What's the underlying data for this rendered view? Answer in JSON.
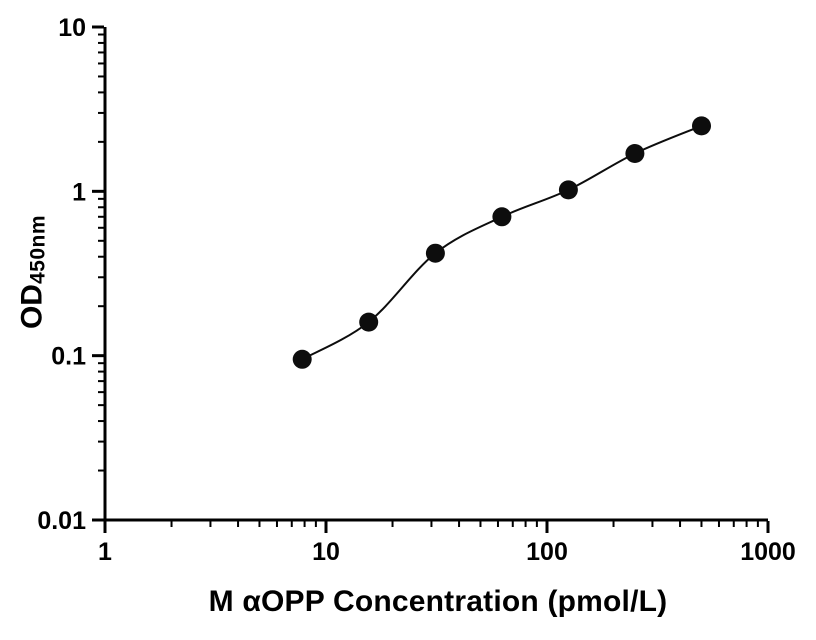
{
  "chart_data": {
    "type": "scatter",
    "title": "",
    "xlabel": "M αOPP Concentration (pmol/L)",
    "ylabel_main": "OD",
    "ylabel_sub": "450nm",
    "xscale": "log",
    "yscale": "log",
    "xlim": [
      1,
      1000
    ],
    "ylim": [
      0.01,
      10
    ],
    "x_ticks": [
      1,
      10,
      100,
      1000
    ],
    "x_tick_labels": [
      "1",
      "10",
      "100",
      "1000"
    ],
    "y_ticks": [
      0.01,
      0.1,
      1,
      10
    ],
    "y_tick_labels": [
      "0.01",
      "0.1",
      "1",
      "10"
    ],
    "minor_ticks": true,
    "grid": false,
    "legend": false,
    "points": {
      "x": [
        7.8,
        15.6,
        31.25,
        62.5,
        125,
        250,
        500
      ],
      "y": [
        0.095,
        0.16,
        0.42,
        0.7,
        1.02,
        1.7,
        2.5
      ]
    },
    "curve": "smooth fitted line through all points",
    "marker_color": "#0d0d0d",
    "line_color": "#0d0d0d",
    "axis_color": "#000000",
    "background": "#ffffff"
  }
}
